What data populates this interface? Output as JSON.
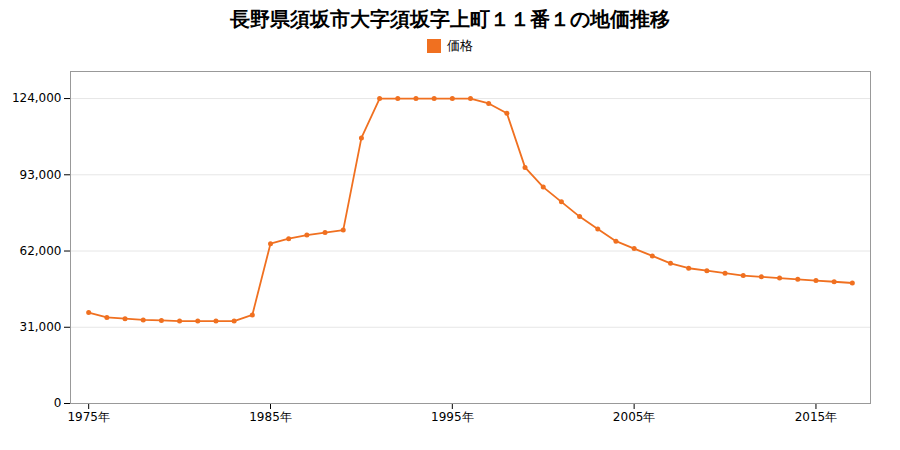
{
  "chart_data": {
    "type": "line",
    "title": "長野県須坂市大字須坂字上町１１番１の地価推移",
    "x": [
      1975,
      1976,
      1977,
      1978,
      1979,
      1980,
      1981,
      1982,
      1983,
      1984,
      1985,
      1986,
      1987,
      1988,
      1989,
      1990,
      1991,
      1992,
      1993,
      1994,
      1995,
      1996,
      1997,
      1998,
      1999,
      2000,
      2001,
      2002,
      2003,
      2004,
      2005,
      2006,
      2007,
      2008,
      2009,
      2010,
      2011,
      2012,
      2013,
      2014,
      2015,
      2016,
      2017
    ],
    "series": [
      {
        "name": "価格",
        "color": "#f07020",
        "marker": "circle",
        "values": [
          37000,
          35000,
          34500,
          34000,
          33800,
          33500,
          33500,
          33500,
          33500,
          36000,
          65000,
          67000,
          68500,
          69500,
          70500,
          108000,
          124000,
          124000,
          124000,
          124000,
          124000,
          124000,
          122000,
          118000,
          96000,
          88000,
          82000,
          76000,
          71000,
          66000,
          63000,
          60000,
          57000,
          55000,
          54000,
          53000,
          52000,
          51500,
          51000,
          50500,
          50000,
          49500,
          49000
        ]
      }
    ],
    "xlim": [
      1974,
      2018
    ],
    "xticks": [
      {
        "value": 1975,
        "label": "1975年"
      },
      {
        "value": 1985,
        "label": "1985年"
      },
      {
        "value": 1995,
        "label": "1995年"
      },
      {
        "value": 2005,
        "label": "2005年"
      },
      {
        "value": 2015,
        "label": "2015年"
      }
    ],
    "ylim": [
      0,
      135000
    ],
    "yticks": [
      0,
      {
        "value": 31000,
        "label": "31,000"
      },
      {
        "value": 62000,
        "label": "62,000"
      },
      {
        "value": 93000,
        "label": "93,000"
      },
      {
        "value": 124000,
        "label": "124,000"
      }
    ],
    "grid": "y",
    "legend": "top"
  }
}
